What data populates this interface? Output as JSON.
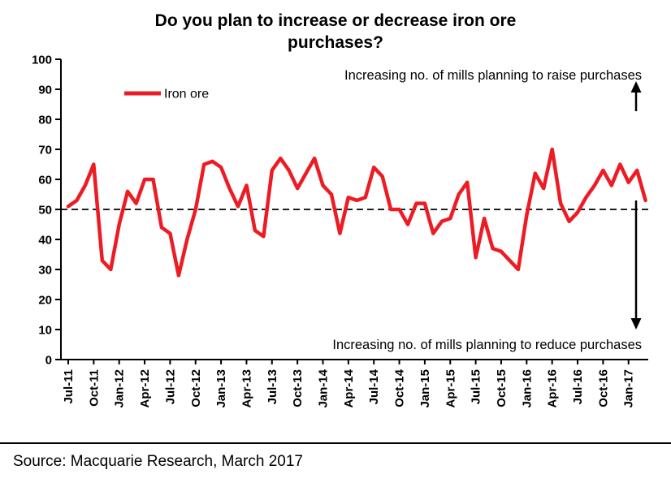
{
  "title": "Do you plan to increase or decrease iron ore purchases?",
  "legend": {
    "label": "Iron ore"
  },
  "annotations": {
    "top": "Increasing no. of mills planning to raise purchases",
    "bottom": "Increasing no. of mills planning to reduce purchases"
  },
  "icons": {
    "raise": "arrow-up",
    "reduce": "arrow-down"
  },
  "source": "Source: Macquarie Research, March 2017",
  "colors": {
    "series": "#ed1c24",
    "axis": "#000000",
    "reference": "#000000"
  },
  "chart_data": {
    "type": "line",
    "title": "Do you plan to increase or decrease iron ore purchases?",
    "series_name": "Iron ore",
    "x": [
      "Jul-11",
      "Aug-11",
      "Sep-11",
      "Oct-11",
      "Nov-11",
      "Dec-11",
      "Jan-12",
      "Feb-12",
      "Mar-12",
      "Apr-12",
      "May-12",
      "Jun-12",
      "Jul-12",
      "Aug-12",
      "Sep-12",
      "Oct-12",
      "Nov-12",
      "Dec-12",
      "Jan-13",
      "Feb-13",
      "Mar-13",
      "Apr-13",
      "May-13",
      "Jun-13",
      "Jul-13",
      "Aug-13",
      "Sep-13",
      "Oct-13",
      "Nov-13",
      "Dec-13",
      "Jan-14",
      "Feb-14",
      "Mar-14",
      "Apr-14",
      "May-14",
      "Jun-14",
      "Jul-14",
      "Aug-14",
      "Sep-14",
      "Oct-14",
      "Nov-14",
      "Dec-14",
      "Jan-15",
      "Feb-15",
      "Mar-15",
      "Apr-15",
      "May-15",
      "Jun-15",
      "Jul-15",
      "Aug-15",
      "Sep-15",
      "Oct-15",
      "Nov-15",
      "Dec-15",
      "Jan-16",
      "Feb-16",
      "Mar-16",
      "Apr-16",
      "May-16",
      "Jun-16",
      "Jul-16",
      "Aug-16",
      "Sep-16",
      "Oct-16",
      "Nov-16",
      "Dec-16",
      "Jan-17",
      "Feb-17",
      "Mar-17"
    ],
    "values": [
      51,
      53,
      58,
      65,
      33,
      30,
      45,
      56,
      52,
      60,
      60,
      44,
      42,
      28,
      40,
      50,
      65,
      66,
      64,
      57,
      51,
      58,
      43,
      41,
      63,
      67,
      63,
      57,
      62,
      67,
      58,
      55,
      42,
      54,
      53,
      54,
      64,
      61,
      50,
      50,
      45,
      52,
      52,
      42,
      46,
      47,
      55,
      59,
      34,
      47,
      37,
      36,
      33,
      30,
      48,
      62,
      57,
      70,
      52,
      46,
      49,
      54,
      58,
      63,
      58,
      65,
      59,
      63,
      53
    ],
    "x_tick_labels": [
      "Jul-11",
      "Oct-11",
      "Jan-12",
      "Apr-12",
      "Jul-12",
      "Oct-12",
      "Jan-13",
      "Apr-13",
      "Jul-13",
      "Oct-13",
      "Jan-14",
      "Apr-14",
      "Jul-14",
      "Oct-14",
      "Jan-15",
      "Apr-15",
      "Jul-15",
      "Oct-15",
      "Jan-16",
      "Apr-16",
      "Jul-16",
      "Oct-16",
      "Jan-17"
    ],
    "x_tick_every": 3,
    "ylim": [
      0,
      100
    ],
    "y_ticks": [
      0,
      10,
      20,
      30,
      40,
      50,
      60,
      70,
      80,
      90,
      100
    ],
    "reference_line": 50,
    "grid": false,
    "legend_position": "top-left"
  }
}
